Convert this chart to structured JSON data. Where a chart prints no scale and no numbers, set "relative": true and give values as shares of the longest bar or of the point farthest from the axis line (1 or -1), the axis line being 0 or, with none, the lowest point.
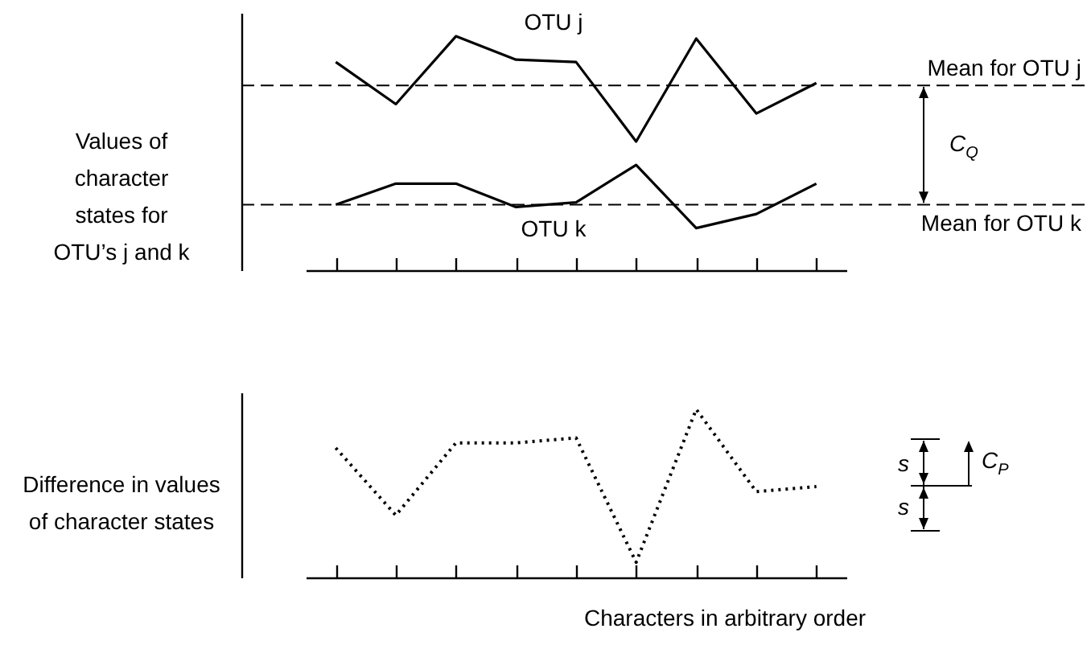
{
  "chart_data": [
    {
      "type": "line",
      "relative": true,
      "ylabel": "Values of character states for OTU’s j and k",
      "categories": [
        null,
        null,
        null,
        null,
        null,
        null,
        null,
        null,
        null
      ],
      "line_style": "solid",
      "series": [
        {
          "name": "OTU j",
          "color": "#000000",
          "values": [
            0.89,
            0.71,
            1,
            0.9,
            0.89,
            0.55,
            0.99,
            0.67,
            0.8
          ]
        },
        {
          "name": "OTU k",
          "color": "#000000",
          "values": [
            0.28,
            0.37,
            0.37,
            0.27,
            0.29,
            0.45,
            0.18,
            0.24,
            0.37
          ]
        }
      ],
      "ref_lines": [
        {
          "axis": "y",
          "value": 0.79,
          "label": "Mean for OTU j",
          "line_style": "dashed"
        },
        {
          "axis": "y",
          "value": 0.28,
          "label": "Mean for OTU k",
          "line_style": "dashed"
        }
      ],
      "annotations": [
        "C$_{Q}$"
      ]
    },
    {
      "type": "line",
      "relative": true,
      "ylabel": "Difference in values of character states",
      "xlabel": "Characters in arbitrary order",
      "categories": [
        null,
        null,
        null,
        null,
        null,
        null,
        null,
        null,
        null
      ],
      "line_style": "dotted",
      "series": [
        {
          "color": "#000000",
          "values": [
            0.77,
            0.37,
            0.8,
            0.8,
            0.83,
            0.09,
            1,
            0.51,
            0.54
          ]
        }
      ],
      "annotations": [
        "s",
        "s",
        "C$_{P}$"
      ]
    }
  ]
}
